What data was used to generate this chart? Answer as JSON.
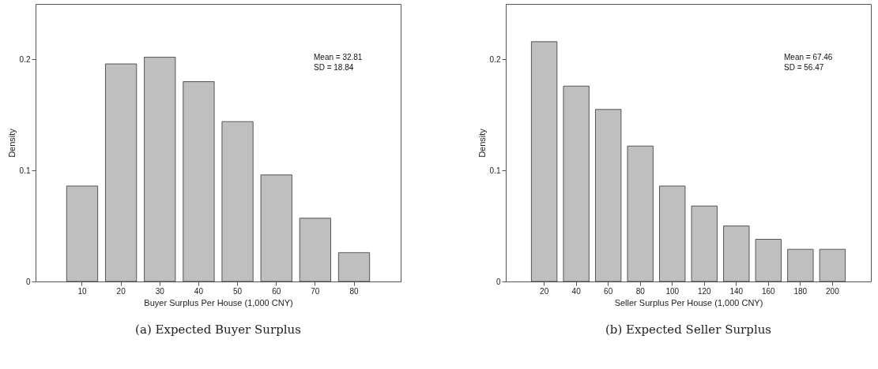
{
  "chart_data": [
    {
      "type": "bar",
      "title": "(a)  Expected Buyer Surplus",
      "xlabel": "Buyer Surplus Per House (1,000 CNY)",
      "ylabel": "Density",
      "categories": [
        "10",
        "20",
        "30",
        "40",
        "50",
        "60",
        "70",
        "80"
      ],
      "values": [
        0.086,
        0.196,
        0.202,
        0.18,
        0.144,
        0.096,
        0.057,
        0.026
      ],
      "color": "#bfbfbf",
      "ylim": [
        0,
        0.25
      ],
      "yticks": [
        0,
        0.1,
        0.2
      ],
      "grid": false,
      "legend": false,
      "annotations": [
        "Mean = 32.81",
        "SD = 18.84"
      ]
    },
    {
      "type": "bar",
      "title": "(b)  Expected Seller Surplus",
      "xlabel": "Seller Surplus Per House (1,000 CNY)",
      "ylabel": "Density",
      "categories": [
        "20",
        "40",
        "60",
        "80",
        "100",
        "120",
        "140",
        "160",
        "180",
        "200"
      ],
      "values": [
        0.216,
        0.176,
        0.155,
        0.122,
        0.086,
        0.068,
        0.05,
        0.038,
        0.029,
        0.029
      ],
      "color": "#bfbfbf",
      "ylim": [
        0,
        0.25
      ],
      "yticks": [
        0,
        0.1,
        0.2
      ],
      "grid": false,
      "legend": false,
      "annotations": [
        "Mean = 67.46",
        "SD = 56.47"
      ]
    }
  ]
}
